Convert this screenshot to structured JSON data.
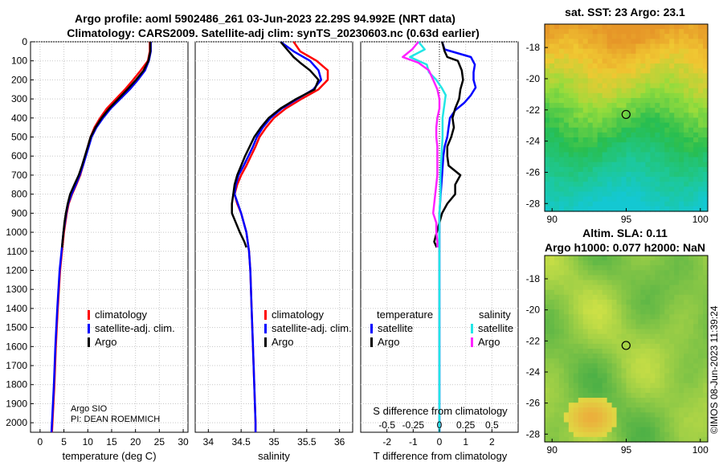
{
  "header": {
    "title_line1": "Argo profile: aoml 5902486_261 03-Jun-2023 22.29S 94.992E (NRT data)",
    "title_line2": "Climatology: CARS2009. Satellite-adj clim: synTS_20230603.nc (0.63d earlier)"
  },
  "colors": {
    "climatology": "#ff0000",
    "satellite_adj": "#0000ff",
    "argo": "#000000",
    "satellite_s": "#22e6e6",
    "argo_s": "#ff22ff"
  },
  "chart_data": [
    {
      "type": "line",
      "panel": "temperature",
      "xlabel": "temperature (deg C)",
      "ylabel": "pressure",
      "xlim": [
        -2,
        31
      ],
      "ylim": [
        0,
        2050
      ],
      "xticks": [
        "0",
        "5",
        "10",
        "15",
        "20",
        "25",
        "30"
      ],
      "yticks": [
        "0",
        "100",
        "200",
        "300",
        "400",
        "500",
        "600",
        "700",
        "800",
        "900",
        "1000",
        "1100",
        "1200",
        "1300",
        "1400",
        "1500",
        "1600",
        "1700",
        "1800",
        "1900",
        "2000"
      ],
      "legend": [
        "climatology",
        "satellite-adj. clim.",
        "Argo"
      ],
      "note_line1": "Argo SIO",
      "note_line2": "PI: DEAN ROEMMICH",
      "series": [
        {
          "name": "climatology",
          "y": [
            0,
            50,
            100,
            150,
            200,
            250,
            300,
            350,
            400,
            450,
            500,
            550,
            600,
            650,
            700,
            750,
            800,
            850,
            900,
            1000,
            1100,
            1200,
            1400,
            1600,
            1800,
            2000,
            2050
          ],
          "values": [
            23.0,
            23.0,
            22.6,
            21.1,
            19.5,
            17.8,
            15.9,
            14.0,
            12.6,
            11.4,
            10.6,
            10.0,
            9.5,
            9.0,
            8.4,
            7.6,
            6.7,
            6.0,
            5.6,
            5.0,
            4.6,
            4.2,
            3.7,
            3.3,
            3.0,
            2.6,
            2.5
          ]
        },
        {
          "name": "satellite-adj. clim.",
          "y": [
            0,
            50,
            100,
            150,
            200,
            250,
            300,
            350,
            400,
            450,
            500,
            550,
            600,
            650,
            700,
            750,
            800,
            850,
            900,
            1000,
            1100,
            1200,
            1400,
            1600,
            1800,
            2000,
            2050
          ],
          "values": [
            23.2,
            23.2,
            22.8,
            22.0,
            20.5,
            18.8,
            16.8,
            14.8,
            13.2,
            11.8,
            10.8,
            10.2,
            9.6,
            9.0,
            8.3,
            7.5,
            6.6,
            5.9,
            5.5,
            4.9,
            4.5,
            4.1,
            3.6,
            3.2,
            2.9,
            2.5,
            2.4
          ]
        },
        {
          "name": "Argo",
          "y": [
            0,
            50,
            100,
            150,
            200,
            250,
            300,
            350,
            400,
            450,
            500,
            550,
            600,
            650,
            700,
            750,
            800,
            850,
            900,
            950,
            1000,
            1050,
            1080
          ],
          "values": [
            23.1,
            23.1,
            22.7,
            21.7,
            20.1,
            18.3,
            16.4,
            14.5,
            12.9,
            11.6,
            10.6,
            10.0,
            9.4,
            8.8,
            8.1,
            7.2,
            6.3,
            5.8,
            5.4,
            5.1,
            4.9,
            4.7,
            4.6
          ]
        }
      ]
    },
    {
      "type": "line",
      "panel": "salinity",
      "xlabel": "salinity",
      "xlim": [
        33.8,
        36.2
      ],
      "ylim": [
        0,
        2050
      ],
      "xticks": [
        "34",
        "34.5",
        "35",
        "35.5",
        "36"
      ],
      "legend": [
        "climatology",
        "satellite-adj. clim.",
        "Argo"
      ],
      "series": [
        {
          "name": "climatology",
          "y": [
            0,
            50,
            100,
            150,
            200,
            250,
            300,
            350,
            400,
            450,
            500,
            550,
            600,
            650,
            700,
            750,
            800,
            850,
            900,
            1000,
            1100,
            1200,
            1400,
            1600,
            1800,
            2000,
            2050
          ],
          "values": [
            35.3,
            35.4,
            35.65,
            35.82,
            35.82,
            35.68,
            35.42,
            35.18,
            35.0,
            34.88,
            34.78,
            34.72,
            34.65,
            34.58,
            34.5,
            34.44,
            34.4,
            34.44,
            34.5,
            34.58,
            34.62,
            34.64,
            34.66,
            34.68,
            34.7,
            34.72,
            34.72
          ]
        },
        {
          "name": "satellite-adj. clim.",
          "y": [
            0,
            50,
            100,
            150,
            200,
            250,
            300,
            350,
            400,
            450,
            500,
            550,
            600,
            650,
            700,
            750,
            800,
            850,
            900,
            1000,
            1100,
            1200,
            1400,
            1600,
            1800,
            2000,
            2050
          ],
          "values": [
            35.1,
            35.3,
            35.55,
            35.68,
            35.72,
            35.6,
            35.36,
            35.12,
            34.95,
            34.83,
            34.74,
            34.68,
            34.61,
            34.54,
            34.46,
            34.42,
            34.4,
            34.45,
            34.5,
            34.58,
            34.62,
            34.64,
            34.66,
            34.68,
            34.7,
            34.72,
            34.72
          ]
        },
        {
          "name": "Argo",
          "y": [
            0,
            40,
            80,
            110,
            150,
            200,
            250,
            300,
            350,
            400,
            450,
            500,
            550,
            600,
            650,
            700,
            750,
            800,
            850,
            900,
            950,
            1000,
            1050,
            1080
          ],
          "values": [
            35.1,
            35.2,
            35.3,
            35.4,
            35.55,
            35.68,
            35.62,
            35.34,
            35.1,
            34.92,
            34.8,
            34.7,
            34.63,
            34.56,
            34.5,
            34.44,
            34.4,
            34.38,
            34.36,
            34.36,
            34.42,
            34.48,
            34.55,
            34.58
          ]
        }
      ]
    },
    {
      "type": "line",
      "panel": "differences",
      "xlabel": "T difference from climatology",
      "xlabel_top": "S difference from climatology",
      "xlim": [
        -3,
        3
      ],
      "ylim": [
        0,
        2050
      ],
      "xticks": [
        "-2",
        "-1",
        "0",
        "1",
        "2"
      ],
      "xticks_s": [
        "-0.5",
        "-0.25",
        "0",
        "0.25",
        "0.5"
      ],
      "legend_t_header": "temperature",
      "legend_s_header": "salinity",
      "legend": [
        "satellite",
        "Argo",
        "satellite",
        "Argo"
      ],
      "series": [
        {
          "name": "temperature satellite",
          "y": [
            0,
            40,
            80,
            120,
            160,
            200,
            240,
            280,
            320,
            360,
            400,
            450,
            500,
            550,
            600,
            700,
            800,
            900,
            1000,
            1100,
            1200,
            1400,
            1600,
            1800,
            2000,
            2050
          ],
          "values": [
            0.1,
            0.2,
            1.2,
            1.35,
            1.3,
            1.3,
            1.38,
            1.2,
            0.95,
            0.6,
            0.4,
            0.35,
            0.3,
            0.2,
            0.15,
            0.1,
            0.05,
            0.0,
            0.0,
            0.0,
            0.0,
            0.0,
            0.0,
            0.0,
            0.0,
            0.0
          ]
        },
        {
          "name": "temperature Argo",
          "y": [
            0,
            50,
            80,
            100,
            150,
            200,
            250,
            300,
            350,
            400,
            450,
            500,
            550,
            600,
            650,
            700,
            750,
            800,
            850,
            900,
            950,
            1000,
            1050,
            1080
          ],
          "values": [
            0.1,
            0.2,
            0.3,
            0.7,
            0.85,
            0.9,
            0.8,
            0.75,
            0.6,
            0.5,
            0.55,
            0.45,
            0.3,
            0.3,
            0.35,
            0.8,
            0.6,
            0.6,
            0.3,
            0.1,
            0.0,
            -0.1,
            -0.2,
            -0.1
          ]
        },
        {
          "name": "salinity satellite",
          "y": [
            0,
            40,
            80,
            120,
            160,
            200,
            240,
            280,
            320,
            360,
            400,
            500,
            600,
            700,
            800,
            900,
            1000,
            1100,
            1200,
            1400,
            1600,
            1800,
            2000,
            2050
          ],
          "values": [
            -0.2,
            -0.14,
            -0.28,
            -0.12,
            -0.1,
            -0.03,
            0.02,
            0.06,
            0.05,
            0.04,
            0.03,
            0.03,
            0.02,
            0.01,
            0.01,
            0.0,
            0.0,
            0.0,
            0.0,
            0.0,
            0.0,
            0.0,
            0.0,
            0.0
          ]
        },
        {
          "name": "salinity Argo",
          "y": [
            0,
            40,
            80,
            110,
            150,
            200,
            250,
            300,
            350,
            400,
            450,
            500,
            550,
            600,
            700,
            800,
            900,
            950,
            1000,
            1050,
            1080
          ],
          "values": [
            -0.2,
            -0.26,
            -0.35,
            -0.2,
            -0.1,
            -0.06,
            -0.02,
            0.0,
            0.0,
            -0.02,
            -0.03,
            -0.03,
            -0.02,
            -0.02,
            -0.02,
            -0.04,
            -0.06,
            -0.03,
            -0.03,
            -0.02,
            -0.02
          ]
        }
      ]
    },
    {
      "type": "heatmap",
      "panel": "sst_map",
      "title": "sat. SST: 23 Argo: 23.1",
      "xticks": [
        "90",
        "95",
        "100"
      ],
      "yticks": [
        "-18",
        "-20",
        "-22",
        "-24",
        "-26",
        "-28"
      ],
      "lon_range": [
        89.5,
        100.5
      ],
      "lat_range": [
        -28.5,
        -16.5
      ],
      "argo_position": [
        94.99,
        -22.29
      ]
    },
    {
      "type": "heatmap",
      "panel": "sla_map",
      "title_line1": "Altim. SLA: 0.11",
      "title_line2": "Argo h1000: 0.077 h2000: NaN",
      "xticks": [
        "90",
        "95",
        "100"
      ],
      "yticks": [
        "-18",
        "-20",
        "-22",
        "-24",
        "-26",
        "-28"
      ],
      "lon_range": [
        89.5,
        100.5
      ],
      "lat_range": [
        -28.5,
        -16.5
      ],
      "argo_position": [
        94.99,
        -22.29
      ]
    }
  ],
  "footer": {
    "stamp": "©IMOS 08-Jun-2023 11:39:24"
  }
}
